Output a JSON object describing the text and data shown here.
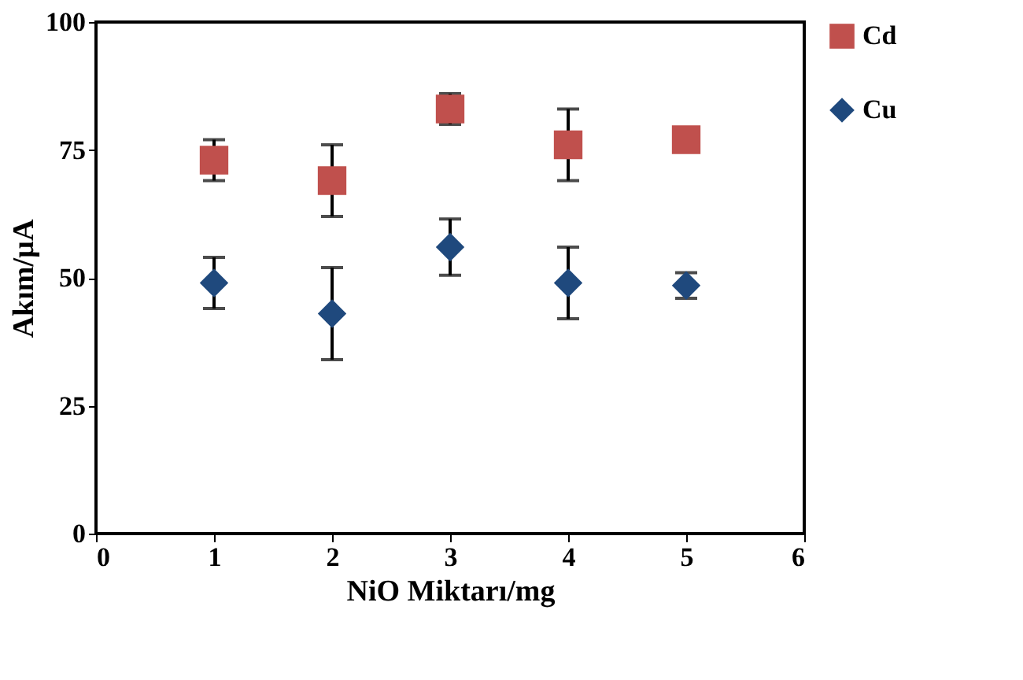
{
  "chart_data": {
    "type": "scatter",
    "xlabel": "NiO Miktarı/mg",
    "ylabel": "Akım/µA",
    "x": [
      1,
      2,
      3,
      4,
      5
    ],
    "series": [
      {
        "name": "Cd",
        "color": "#c0504d",
        "marker": "square",
        "values": [
          73,
          69,
          83,
          76,
          77
        ],
        "errors": [
          4,
          7,
          3,
          7,
          null
        ]
      },
      {
        "name": "Cu",
        "color": "#1f497d",
        "marker": "diamond",
        "values": [
          49,
          43,
          56,
          49,
          48.5
        ],
        "errors": [
          5,
          9,
          5.5,
          7,
          2.5
        ]
      }
    ],
    "xlim": [
      0,
      6
    ],
    "xticks": [
      0,
      1,
      2,
      3,
      4,
      5,
      6
    ],
    "ylim": [
      0,
      100
    ],
    "yticks": [
      0,
      25,
      50,
      75,
      100
    ],
    "grid": false,
    "legend": "right"
  }
}
